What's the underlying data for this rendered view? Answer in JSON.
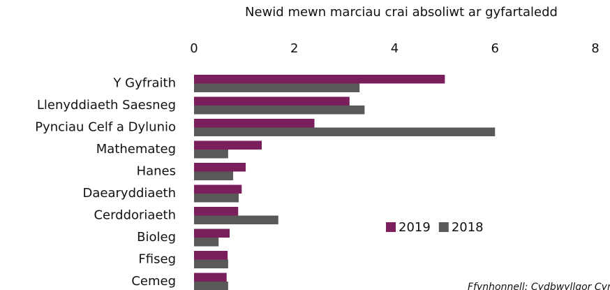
{
  "chart_data": {
    "type": "barh",
    "title": "Newid mewn marciau crai absoliwt ar gyfartaledd",
    "categories": [
      "Y Gyfraith",
      "Llenyddiaeth Saesneg",
      "Pynciau Celf a Dylunio",
      "Mathemateg",
      "Hanes",
      "Daearyddiaeth",
      "Cerddoriaeth",
      "Bioleg",
      "Ffiseg",
      "Cemeg"
    ],
    "series": [
      {
        "name": "2019",
        "color": "#7b1f5c",
        "values": [
          5.0,
          3.1,
          2.4,
          1.35,
          1.03,
          0.95,
          0.88,
          0.71,
          0.67,
          0.65
        ]
      },
      {
        "name": "2018",
        "color": "#595959",
        "values": [
          3.3,
          3.4,
          6.0,
          0.68,
          0.78,
          0.89,
          1.68,
          0.49,
          0.68,
          0.68
        ]
      }
    ],
    "xlim": [
      0,
      8
    ],
    "xticks": [
      0,
      2,
      4,
      6,
      8
    ],
    "source": "Ffynhonnell: Cydbwyllgor Cymwysterau"
  }
}
